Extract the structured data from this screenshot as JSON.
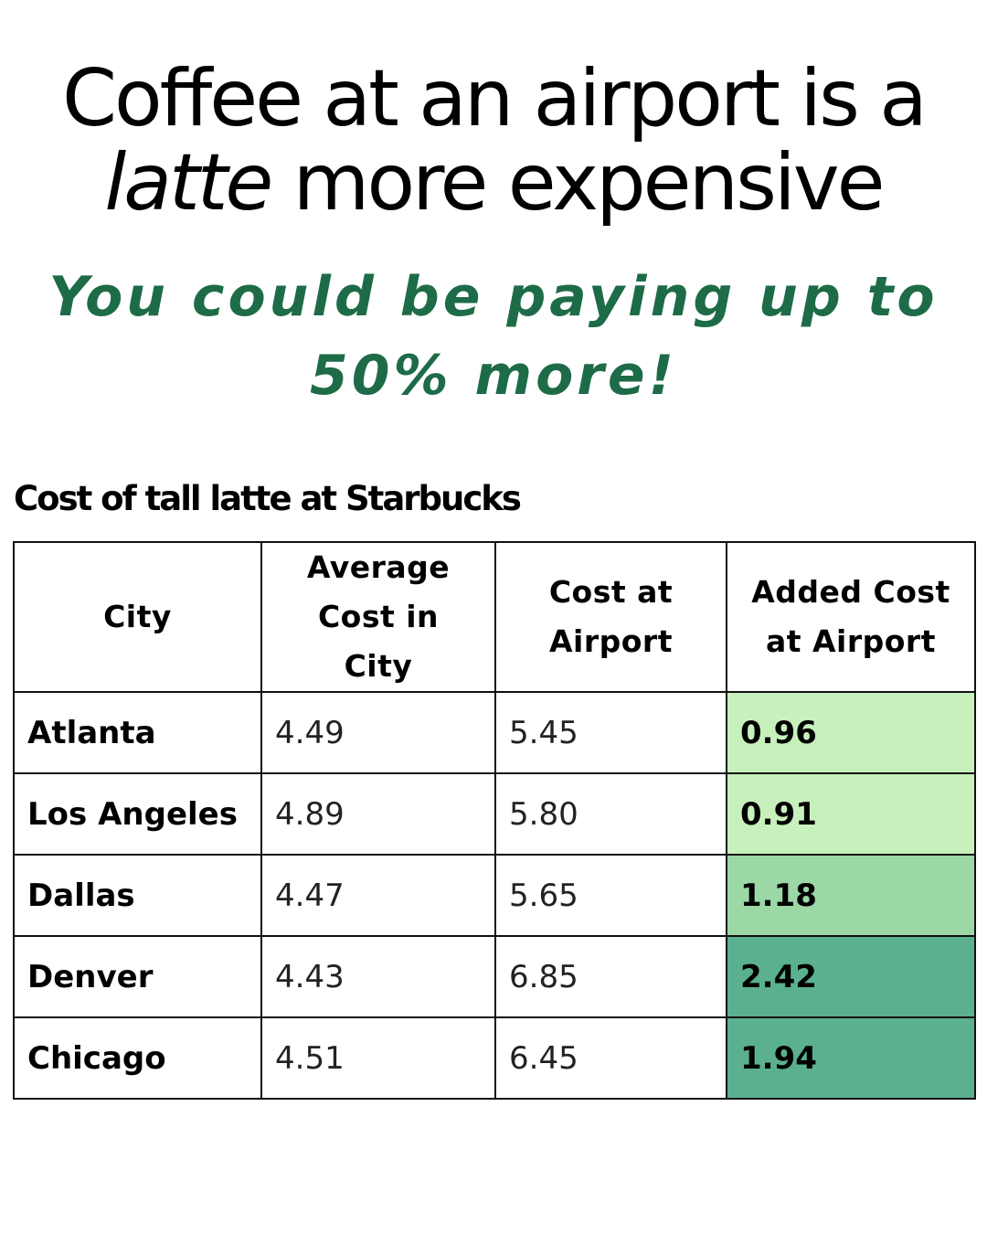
{
  "headline": {
    "line1": "Coffee at an airport is a",
    "line2_italic": "latte",
    "line2_rest": " more expensive"
  },
  "subhead": {
    "line1": "You could be paying up to",
    "line2": "50% more!",
    "color": "#1e6b48"
  },
  "chart_data": {
    "type": "table",
    "title": "Cost of tall latte at Starbucks",
    "columns": [
      "City",
      "Average Cost in City",
      "Cost at Airport",
      "Added Cost at Airport"
    ],
    "rows": [
      {
        "city": "Atlanta",
        "avg": "4.49",
        "airport": "5.45",
        "added": "0.96",
        "color": "#c8f0bc"
      },
      {
        "city": "Los Angeles",
        "avg": "4.89",
        "airport": "5.80",
        "added": "0.91",
        "color": "#c8f0bc"
      },
      {
        "city": "Dallas",
        "avg": "4.47",
        "airport": "5.65",
        "added": "1.18",
        "color": "#9bd8a6"
      },
      {
        "city": "Denver",
        "avg": "4.43",
        "airport": "6.85",
        "added": "2.42",
        "color": "#5bb08f"
      },
      {
        "city": "Chicago",
        "avg": "4.51",
        "airport": "6.45",
        "added": "1.94",
        "color": "#5bb08f"
      }
    ]
  }
}
